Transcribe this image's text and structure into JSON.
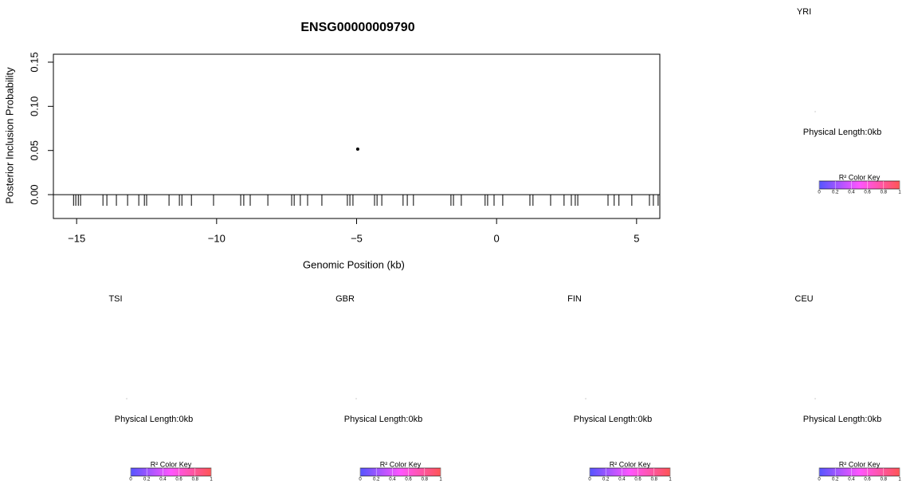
{
  "chart_data": {
    "type": "scatter",
    "title": "ENSG00000009790",
    "x_label": "Genomic Position (kb)",
    "y_label": "Posterior Inclusion Probability",
    "x": [
      -4.96
    ],
    "y": [
      0.0515
    ],
    "color": "#000000",
    "rug": [
      -15.11,
      -15.03,
      -14.94,
      -14.86,
      -14.06,
      -13.92,
      -13.58,
      -13.18,
      -12.78,
      -12.58,
      -12.5,
      -11.7,
      -11.33,
      -11.24,
      -10.9,
      -10.11,
      -9.14,
      -9.03,
      -8.8,
      -8.17,
      -7.32,
      -7.23,
      -7.01,
      -6.75,
      -6.24,
      -5.33,
      -5.24,
      -5.13,
      -4.36,
      -4.27,
      -4.1,
      -3.34,
      -3.19,
      -2.97,
      -1.63,
      -1.54,
      -1.26,
      -0.41,
      -0.32,
      -0.09,
      0.22,
      1.19,
      1.3,
      1.93,
      2.41,
      2.67,
      2.81,
      2.9,
      3.98,
      4.2,
      4.37,
      4.83,
      5.46,
      5.6,
      5.77
    ],
    "xlim": [
      -15.83,
      5.83
    ],
    "xticks": [
      {
        "value": -15,
        "label": "−15"
      },
      {
        "value": -10,
        "label": "−10"
      },
      {
        "value": -5,
        "label": "−5"
      },
      0,
      5
    ],
    "ylim": [
      -0.027,
      0.159
    ],
    "yticks": [
      {
        "value": 0,
        "label": "0.00"
      },
      {
        "value": 0.05,
        "label": "0.05"
      },
      {
        "value": 0.1,
        "label": "0.10"
      },
      {
        "value": 0.15,
        "label": "0.15"
      }
    ]
  },
  "panels": [
    {
      "title": "YRI",
      "length_label": "Physical Length:0kb"
    },
    {
      "title": "TSI",
      "length_label": "Physical Length:0kb"
    },
    {
      "title": "GBR",
      "length_label": "Physical Length:0kb"
    },
    {
      "title": "FIN",
      "length_label": "Physical Length:0kb"
    },
    {
      "title": "CEU",
      "length_label": "Physical Length:0kb"
    }
  ],
  "color_key": {
    "title": "R² Color Key",
    "colors": [
      "#5555ff",
      "#ff55ff",
      "#ff5555"
    ],
    "ticks": [
      0,
      0.2,
      0.4,
      0.6,
      0.8,
      1
    ]
  }
}
